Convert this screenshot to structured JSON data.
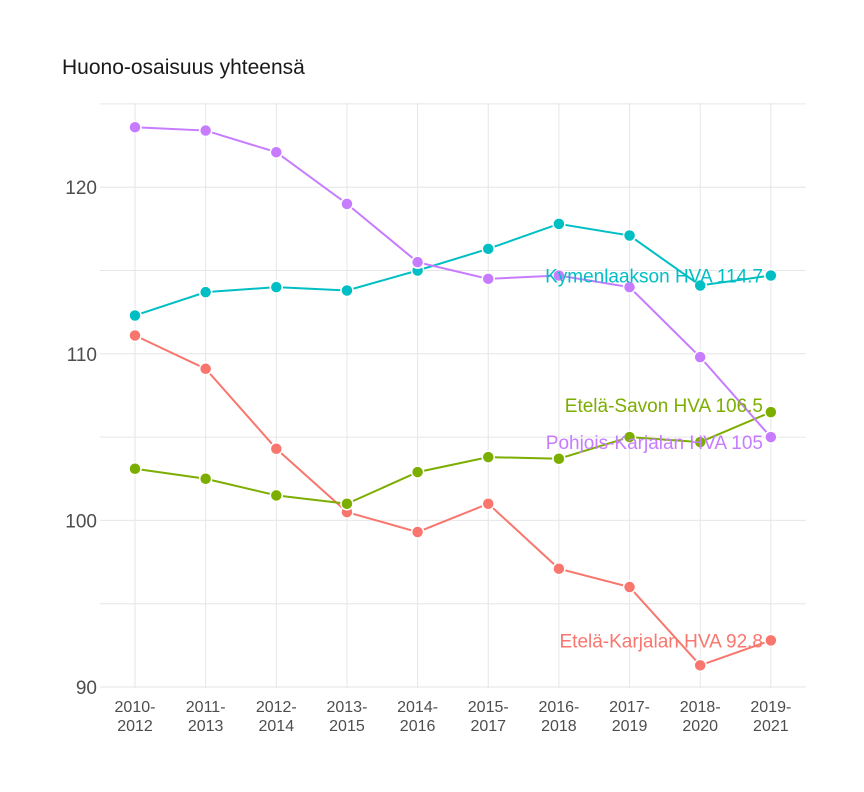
{
  "chart_data": {
    "type": "line",
    "title": "Huono-osaisuus yhteensä",
    "xlabel": "",
    "ylabel": "",
    "ylim": [
      89,
      125
    ],
    "yticks": [
      "90",
      "100",
      "110",
      "120"
    ],
    "categories": [
      "2010-2012",
      "2011-2013",
      "2012-2014",
      "2013-2015",
      "2014-2016",
      "2015-2017",
      "2016-2018",
      "2017-2019",
      "2018-2020",
      "2019-2021"
    ],
    "category_lines": [
      [
        "2010-",
        "2012"
      ],
      [
        "2011-",
        "2013"
      ],
      [
        "2012-",
        "2014"
      ],
      [
        "2013-",
        "2015"
      ],
      [
        "2014-",
        "2016"
      ],
      [
        "2015-",
        "2017"
      ],
      [
        "2016-",
        "2018"
      ],
      [
        "2017-",
        "2019"
      ],
      [
        "2018-",
        "2020"
      ],
      [
        "2019-",
        "2021"
      ]
    ],
    "grid": true,
    "legend": "none",
    "series": [
      {
        "name": "Etelä-Karjalan HVA",
        "color": "#F8766D",
        "label": "Etelä-Karjalan HVA 92.8",
        "values": [
          111.1,
          109.1,
          104.3,
          100.5,
          99.3,
          101.0,
          97.1,
          96.0,
          91.3,
          92.8
        ]
      },
      {
        "name": "Etelä-Savon HVA",
        "color": "#7CAE00",
        "label": "Etelä-Savon HVA 106.5",
        "values": [
          103.1,
          102.5,
          101.5,
          101.0,
          102.9,
          103.8,
          103.7,
          105.0,
          104.7,
          106.5
        ]
      },
      {
        "name": "Kymenlaakson HVA",
        "color": "#00BFC4",
        "label": "Kymenlaakson HVA 114.7",
        "values": [
          112.3,
          113.7,
          114.0,
          113.8,
          115.0,
          116.3,
          117.8,
          117.1,
          114.1,
          114.7
        ]
      },
      {
        "name": "Pohjois-Karjalan HVA",
        "color": "#C77CFF",
        "label": "Pohjois-Karjalan HVA 105",
        "values": [
          123.6,
          123.4,
          122.1,
          119.0,
          115.5,
          114.5,
          114.7,
          114.0,
          109.8,
          105.0
        ]
      }
    ]
  }
}
